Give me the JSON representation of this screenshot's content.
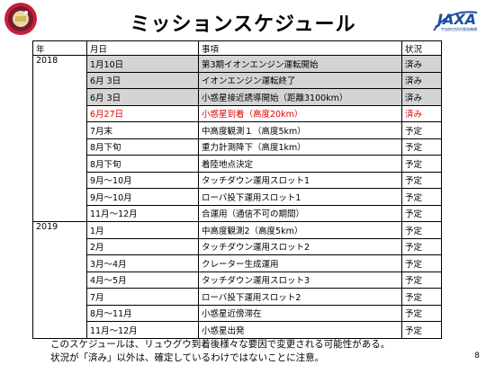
{
  "title": "ミッションスケジュール",
  "logo_right": {
    "text": "JAXA",
    "subtext": "宇宙航空研究開発機構"
  },
  "table": {
    "headers": [
      "年",
      "月日",
      "事項",
      "状況"
    ],
    "groups": [
      {
        "year": "2018",
        "rows": [
          {
            "date": "1月10日",
            "item": "第3期イオンエンジン運転開始",
            "status": "済み",
            "done": true,
            "highlight": false
          },
          {
            "date": "6月 3日",
            "item": "イオンエンジン運転終了",
            "status": "済み",
            "done": true,
            "highlight": false
          },
          {
            "date": "6月 3日",
            "item": "小惑星接近誘導開始（距離3100km）",
            "status": "済み",
            "done": true,
            "highlight": false
          },
          {
            "date": "6月27日",
            "item": "小惑星到着（高度20km）",
            "status": "済み",
            "done": false,
            "highlight": true
          },
          {
            "date": "7月末",
            "item": "中高度観測１（高度5km）",
            "status": "予定",
            "done": false,
            "highlight": false
          },
          {
            "date": "8月下旬",
            "item": "重力計測降下（高度1km）",
            "status": "予定",
            "done": false,
            "highlight": false
          },
          {
            "date": "8月下旬",
            "item": "着陸地点決定",
            "status": "予定",
            "done": false,
            "highlight": false
          },
          {
            "date": "9月～10月",
            "item": "タッチダウン運用スロット1",
            "status": "予定",
            "done": false,
            "highlight": false
          },
          {
            "date": "9月～10月",
            "item": "ローバ投下運用スロット1",
            "status": "予定",
            "done": false,
            "highlight": false
          },
          {
            "date": "11月～12月",
            "item": "合運用（通信不可の期間）",
            "status": "予定",
            "done": false,
            "highlight": false
          }
        ]
      },
      {
        "year": "2019",
        "rows": [
          {
            "date": "1月",
            "item": "中高度観測2（高度5km）",
            "status": "予定",
            "done": false,
            "highlight": false
          },
          {
            "date": "2月",
            "item": "タッチダウン運用スロット2",
            "status": "予定",
            "done": false,
            "highlight": false
          },
          {
            "date": "3月～4月",
            "item": "クレーター生成運用",
            "status": "予定",
            "done": false,
            "highlight": false
          },
          {
            "date": "4月～5月",
            "item": "タッチダウン運用スロット3",
            "status": "予定",
            "done": false,
            "highlight": false
          },
          {
            "date": "7月",
            "item": "ローバ投下運用スロット2",
            "status": "予定",
            "done": false,
            "highlight": false
          },
          {
            "date": "8月～11月",
            "item": "小惑星近傍滞在",
            "status": "予定",
            "done": false,
            "highlight": false
          },
          {
            "date": "11月～12月",
            "item": "小惑星出発",
            "status": "予定",
            "done": false,
            "highlight": false
          }
        ]
      }
    ]
  },
  "footnote": [
    "このスケジュールは、リュウグウ到着後様々な要因で変更される可能性がある。",
    "状況が「済み」以外は、確定しているわけではないことに注意。"
  ],
  "page_number": "8",
  "colors": {
    "done_row": "#d4d4d4",
    "highlight_text": "#e00000",
    "jaxa_blue": "#1b4fa0"
  }
}
